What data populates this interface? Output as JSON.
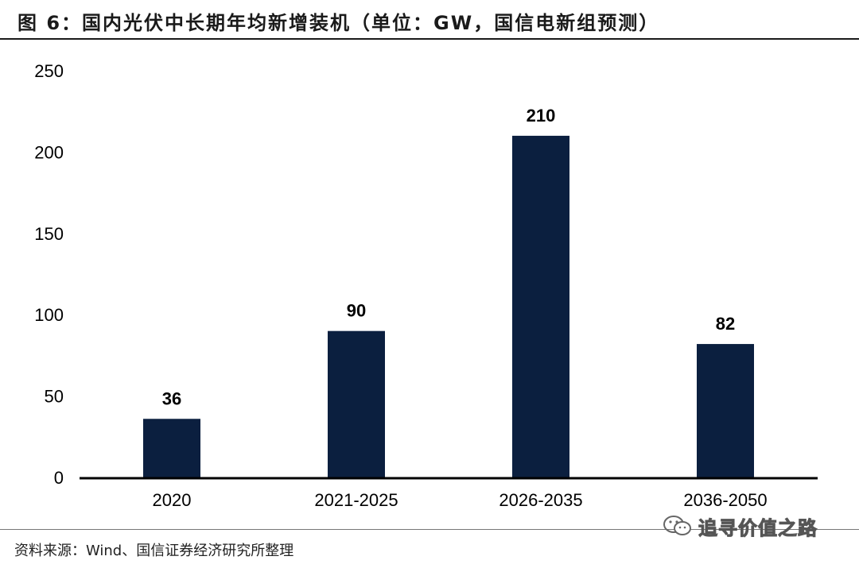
{
  "title": "图  6：国内光伏中长期年均新增装机（单位：GW，国信电新组预测）",
  "source_note": "资料来源：Wind、国信证券经济研究所整理",
  "watermark": "追寻价值之路",
  "colors": {
    "bar": "#0b1f3f",
    "axis": "#000000",
    "text": "#000000"
  },
  "chart_data": {
    "type": "bar",
    "title": "",
    "xlabel": "",
    "ylabel": "",
    "categories": [
      "2020",
      "2021-2025",
      "2026-2035",
      "2036-2050"
    ],
    "values": [
      36,
      90,
      210,
      82
    ],
    "data_labels": [
      "36",
      "90",
      "210",
      "82"
    ],
    "ylim": [
      0,
      250
    ],
    "yticks": [
      0,
      50,
      100,
      150,
      200,
      250
    ],
    "grid": false,
    "legend": "none"
  }
}
